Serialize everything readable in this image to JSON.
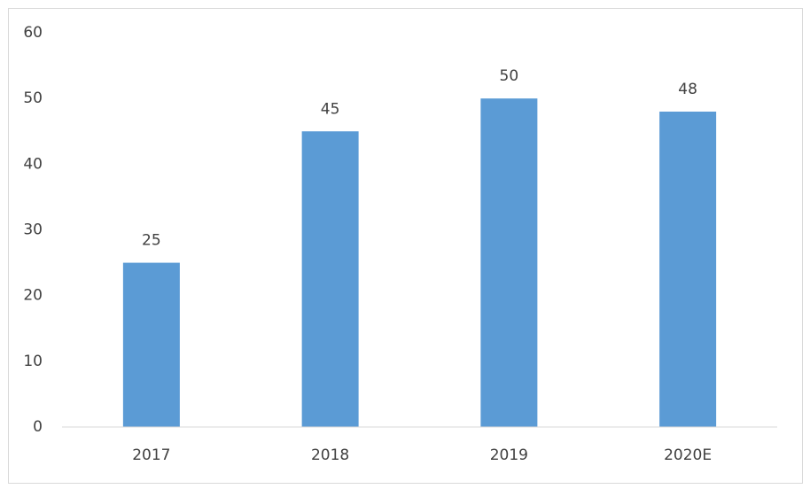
{
  "chart_data": {
    "type": "bar",
    "categories": [
      "2017",
      "2018",
      "2019",
      "2020E"
    ],
    "values": [
      25,
      45,
      50,
      48
    ],
    "color": "#5b9bd5",
    "ylim": [
      0,
      60
    ],
    "yticks": [
      0,
      10,
      20,
      30,
      40,
      50,
      60
    ],
    "grid": false,
    "data_labels": true
  }
}
